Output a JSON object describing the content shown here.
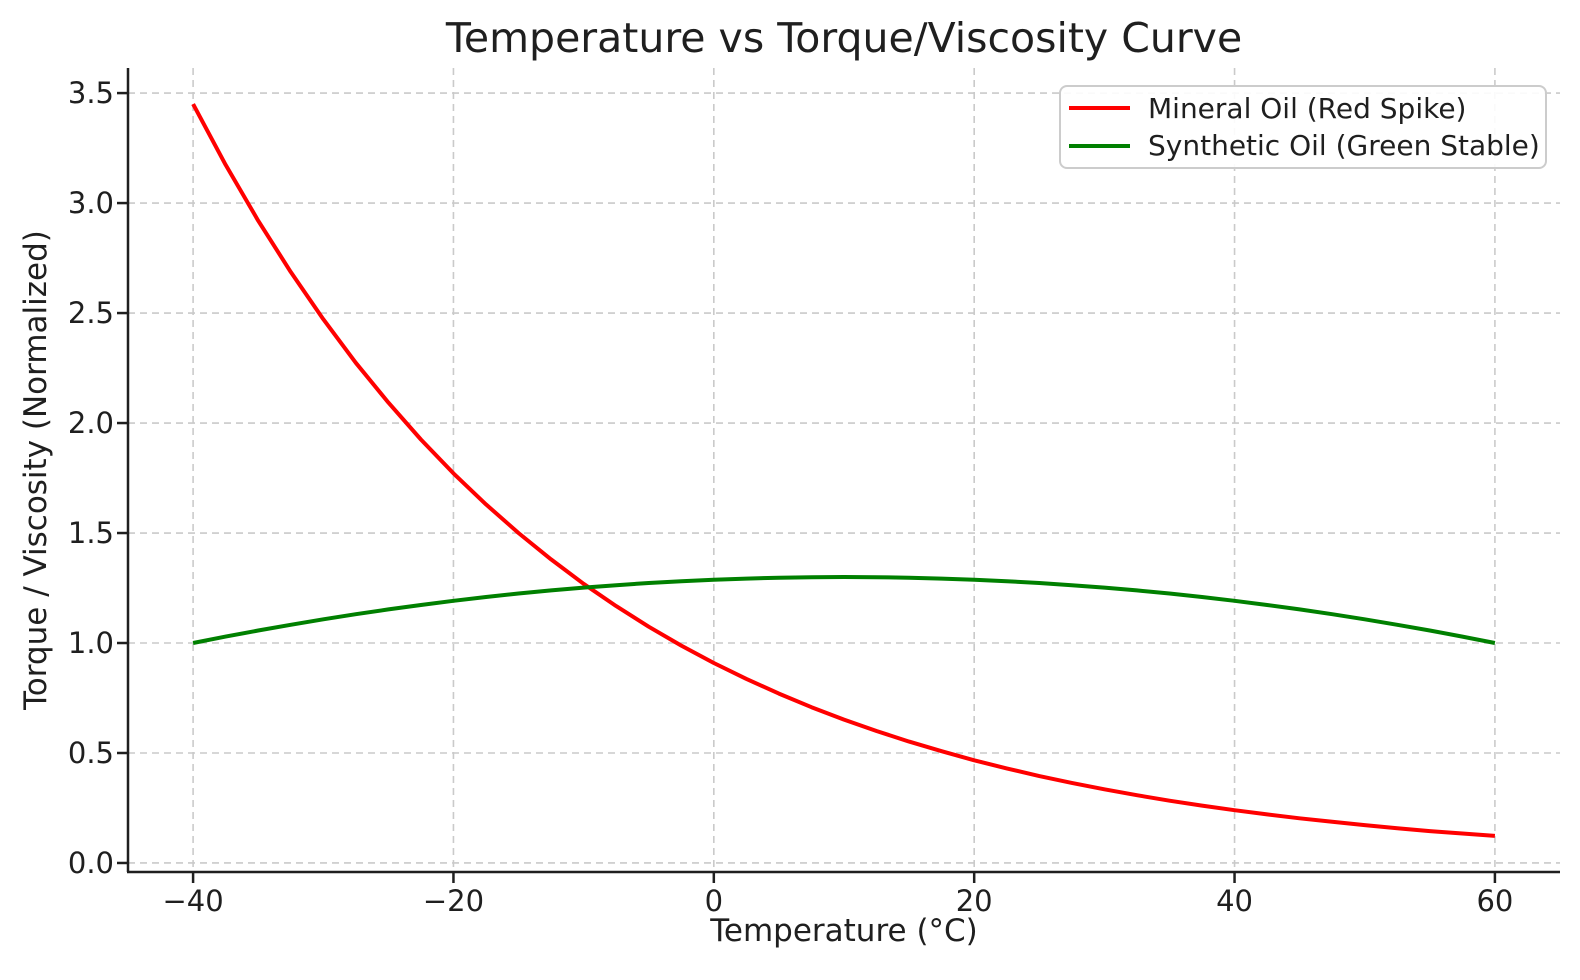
{
  "chart_data": {
    "type": "line",
    "title": "Temperature vs Torque/Viscosity Curve",
    "xlabel": "Temperature (°C)",
    "ylabel": "Torque / Viscosity (Normalized)",
    "xlim": [
      -45,
      65
    ],
    "ylim": [
      -0.041,
      3.614
    ],
    "x_ticks": [
      -40,
      -20,
      0,
      20,
      40,
      60
    ],
    "x_tick_labels": [
      "−40",
      "−20",
      "0",
      "20",
      "40",
      "60"
    ],
    "y_ticks": [
      0.0,
      0.5,
      1.0,
      1.5,
      2.0,
      2.5,
      3.0,
      3.5
    ],
    "y_tick_labels": [
      "0.0",
      "0.5",
      "1.0",
      "1.5",
      "2.0",
      "2.5",
      "3.0",
      "3.5"
    ],
    "grid": true,
    "grid_color": "#cacaca",
    "axis_color": "#1f1f1f",
    "legend_position": "upper right",
    "x": [
      -40,
      -37.5,
      -35,
      -32.5,
      -30,
      -27.5,
      -25,
      -22.5,
      -20,
      -17.5,
      -15,
      -12.5,
      -10,
      -7.5,
      -5,
      -2.5,
      0,
      2.5,
      5,
      7.5,
      10,
      12.5,
      15,
      17.5,
      20,
      22.5,
      25,
      27.5,
      30,
      32.5,
      35,
      37.5,
      40,
      42.5,
      45,
      47.5,
      50,
      52.5,
      55,
      57.5,
      60
    ],
    "series": [
      {
        "name": "Mineral Oil (Red Spike)",
        "color": "#ff0000",
        "values": [
          3.45,
          3.174,
          2.92,
          2.687,
          2.472,
          2.274,
          2.093,
          1.925,
          1.771,
          1.63,
          1.5,
          1.38,
          1.269,
          1.168,
          1.074,
          0.988,
          0.909,
          0.837,
          0.77,
          0.708,
          0.652,
          0.6,
          0.552,
          0.508,
          0.467,
          0.43,
          0.395,
          0.364,
          0.335,
          0.308,
          0.283,
          0.261,
          0.24,
          0.221,
          0.203,
          0.187,
          0.172,
          0.158,
          0.145,
          0.134,
          0.123
        ]
      },
      {
        "name": "Synthetic Oil (Green Stable)",
        "color": "#008000",
        "values": [
          1.0,
          1.029,
          1.057,
          1.083,
          1.108,
          1.131,
          1.153,
          1.173,
          1.192,
          1.209,
          1.225,
          1.239,
          1.252,
          1.263,
          1.273,
          1.281,
          1.288,
          1.293,
          1.297,
          1.299,
          1.3,
          1.299,
          1.297,
          1.293,
          1.288,
          1.281,
          1.273,
          1.263,
          1.252,
          1.239,
          1.225,
          1.209,
          1.192,
          1.173,
          1.153,
          1.131,
          1.108,
          1.083,
          1.057,
          1.029,
          1.0
        ]
      }
    ]
  }
}
